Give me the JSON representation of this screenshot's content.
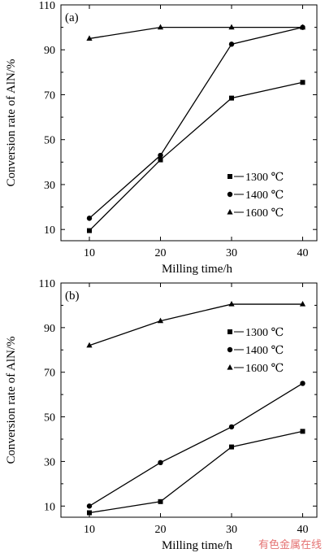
{
  "chart_data": [
    {
      "type": "line",
      "panel_label": "(a)",
      "xlabel": "Milling time/h",
      "ylabel": "Conversion rate of AlN/%",
      "x": [
        10,
        20,
        30,
        40
      ],
      "xticks": [
        10,
        20,
        30,
        40
      ],
      "xlim": [
        6,
        42
      ],
      "yticks": [
        10,
        30,
        50,
        70,
        90,
        110
      ],
      "ylim": [
        5,
        110
      ],
      "grid": false,
      "legend_position": "center-right",
      "series": [
        {
          "name": "1300 ℃",
          "marker": "square",
          "values": [
            9.5,
            41,
            68.5,
            75.5
          ]
        },
        {
          "name": "1400 ℃",
          "marker": "circle",
          "values": [
            15,
            43,
            92.5,
            100
          ]
        },
        {
          "name": "1600 ℃",
          "marker": "triangle",
          "values": [
            95,
            100,
            100,
            100
          ]
        }
      ]
    },
    {
      "type": "line",
      "panel_label": "(b)",
      "xlabel": "Milling time/h",
      "ylabel": "Conversion rate of AlN/%",
      "x": [
        10,
        20,
        30,
        40
      ],
      "xticks": [
        10,
        20,
        30,
        40
      ],
      "xlim": [
        6,
        42
      ],
      "yticks": [
        10,
        30,
        50,
        70,
        90,
        110
      ],
      "ylim": [
        5,
        110
      ],
      "grid": false,
      "legend_position": "top-right",
      "series": [
        {
          "name": "1300 ℃",
          "marker": "square",
          "values": [
            7,
            12,
            36.5,
            43.5
          ]
        },
        {
          "name": "1400 ℃",
          "marker": "circle",
          "values": [
            10,
            29.5,
            45.5,
            65
          ]
        },
        {
          "name": "1600 ℃",
          "marker": "triangle",
          "values": [
            82,
            93,
            100.5,
            100.5
          ]
        }
      ]
    }
  ],
  "watermark": "有色金属在线"
}
